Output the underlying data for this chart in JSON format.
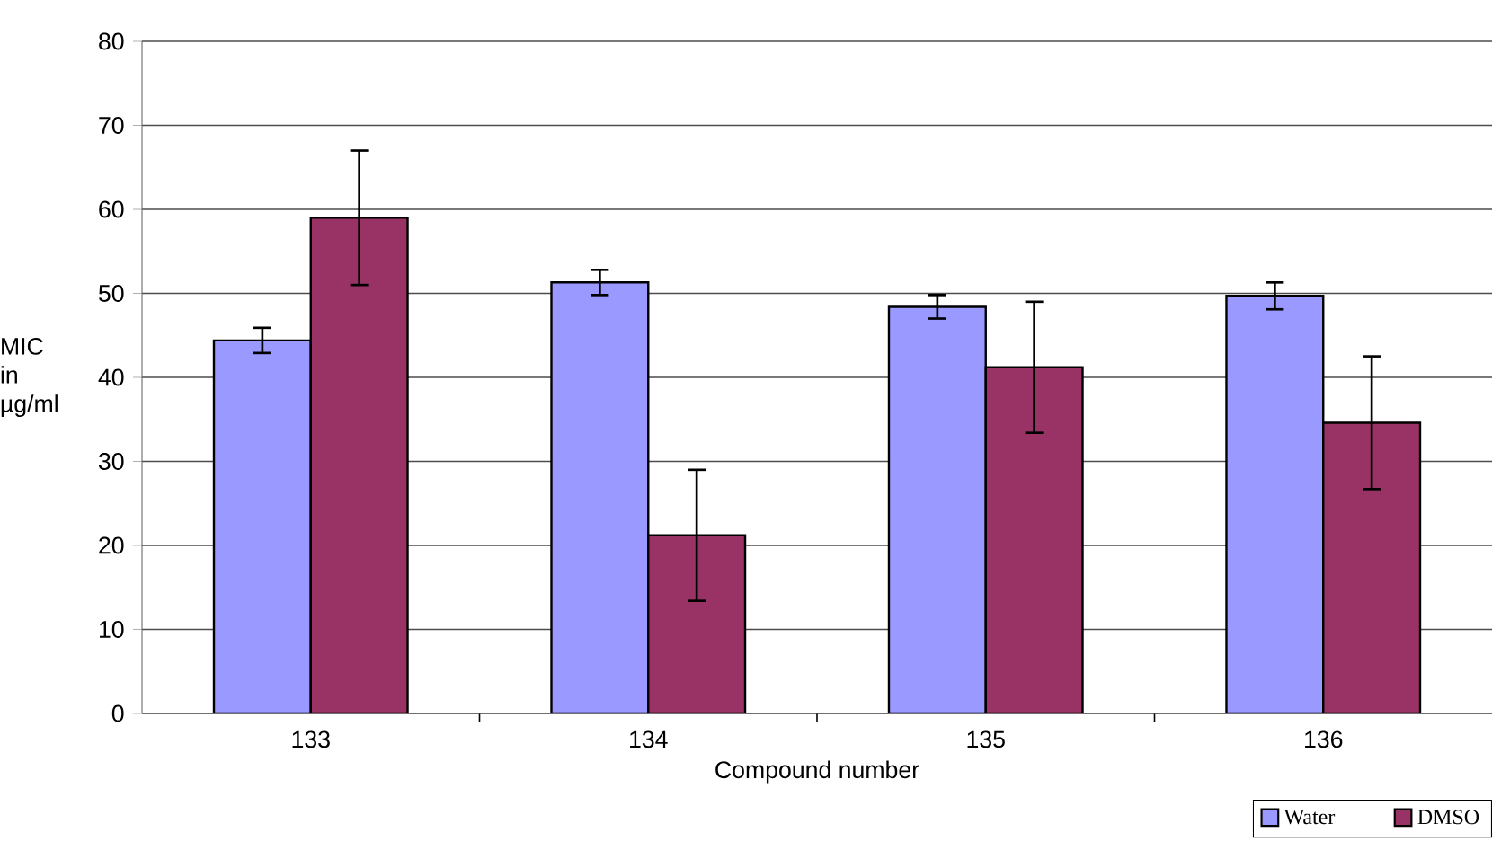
{
  "chart_data": {
    "type": "bar",
    "categories": [
      "133",
      "134",
      "135",
      "136"
    ],
    "series": [
      {
        "name": "Water",
        "color": "#9999ff",
        "values": [
          44.4,
          51.3,
          48.4,
          49.7
        ],
        "errors": [
          1.5,
          1.5,
          1.4,
          1.6
        ]
      },
      {
        "name": "DMSO",
        "color": "#993366",
        "values": [
          59.0,
          21.2,
          41.2,
          34.6
        ],
        "errors": [
          8.0,
          7.8,
          7.8,
          7.9
        ]
      }
    ],
    "xlabel": "Compound number",
    "ylabel": "MIC in µg/ml",
    "ylim": [
      0,
      80
    ],
    "yticks": [
      0,
      10,
      20,
      30,
      40,
      50,
      60,
      70,
      80
    ],
    "grid": "y",
    "legend": "bottom right"
  }
}
